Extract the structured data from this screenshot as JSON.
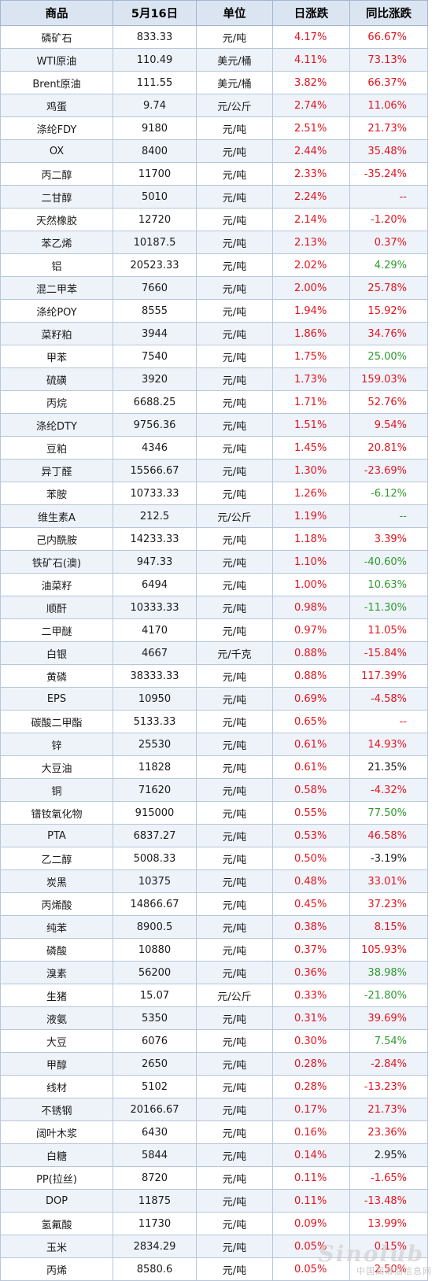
{
  "headers": [
    "商品",
    "5月16日",
    "单位",
    "日涨跌",
    "同比涨跌"
  ],
  "rows": [
    {
      "name": "磷矿石",
      "price": "833.33",
      "unit": "元/吨",
      "daily": "4.17%",
      "yoy": "66.67%",
      "yoy_color": "red"
    },
    {
      "name": "WTI原油",
      "price": "110.49",
      "unit": "美元/桶",
      "daily": "4.11%",
      "yoy": "73.13%",
      "yoy_color": "red"
    },
    {
      "name": "Brent原油",
      "price": "111.55",
      "unit": "美元/桶",
      "daily": "3.82%",
      "yoy": "66.37%",
      "yoy_color": "red"
    },
    {
      "name": "鸡蛋",
      "price": "9.74",
      "unit": "元/公斤",
      "daily": "2.74%",
      "yoy": "11.06%",
      "yoy_color": "red"
    },
    {
      "name": "涤纶FDY",
      "price": "9180",
      "unit": "元/吨",
      "daily": "2.51%",
      "yoy": "21.73%",
      "yoy_color": "red"
    },
    {
      "name": "OX",
      "price": "8400",
      "unit": "元/吨",
      "daily": "2.44%",
      "yoy": "35.48%",
      "yoy_color": "red"
    },
    {
      "name": "丙二醇",
      "price": "11700",
      "unit": "元/吨",
      "daily": "2.33%",
      "yoy": "-35.24%",
      "yoy_color": "red"
    },
    {
      "name": "二甘醇",
      "price": "5010",
      "unit": "元/吨",
      "daily": "2.24%",
      "yoy": "--",
      "yoy_color": "red"
    },
    {
      "name": "天然橡胶",
      "price": "12720",
      "unit": "元/吨",
      "daily": "2.14%",
      "yoy": "-1.20%",
      "yoy_color": "red"
    },
    {
      "name": "苯乙烯",
      "price": "10187.5",
      "unit": "元/吨",
      "daily": "2.13%",
      "yoy": "0.37%",
      "yoy_color": "red"
    },
    {
      "name": "铝",
      "price": "20523.33",
      "unit": "元/吨",
      "daily": "2.02%",
      "yoy": "4.29%",
      "yoy_color": "green"
    },
    {
      "name": "混二甲苯",
      "price": "7660",
      "unit": "元/吨",
      "daily": "2.00%",
      "yoy": "25.78%",
      "yoy_color": "red"
    },
    {
      "name": "涤纶POY",
      "price": "8555",
      "unit": "元/吨",
      "daily": "1.94%",
      "yoy": "15.92%",
      "yoy_color": "red"
    },
    {
      "name": "菜籽粕",
      "price": "3944",
      "unit": "元/吨",
      "daily": "1.86%",
      "yoy": "34.76%",
      "yoy_color": "red"
    },
    {
      "name": "甲苯",
      "price": "7540",
      "unit": "元/吨",
      "daily": "1.75%",
      "yoy": "25.00%",
      "yoy_color": "green"
    },
    {
      "name": "硫磺",
      "price": "3920",
      "unit": "元/吨",
      "daily": "1.73%",
      "yoy": "159.03%",
      "yoy_color": "red"
    },
    {
      "name": "丙烷",
      "price": "6688.25",
      "unit": "元/吨",
      "daily": "1.71%",
      "yoy": "52.76%",
      "yoy_color": "red"
    },
    {
      "name": "涤纶DTY",
      "price": "9756.36",
      "unit": "元/吨",
      "daily": "1.51%",
      "yoy": "9.54%",
      "yoy_color": "red"
    },
    {
      "name": "豆粕",
      "price": "4346",
      "unit": "元/吨",
      "daily": "1.45%",
      "yoy": "20.81%",
      "yoy_color": "red"
    },
    {
      "name": "异丁醛",
      "price": "15566.67",
      "unit": "元/吨",
      "daily": "1.30%",
      "yoy": "-23.69%",
      "yoy_color": "red"
    },
    {
      "name": "苯胺",
      "price": "10733.33",
      "unit": "元/吨",
      "daily": "1.26%",
      "yoy": "-6.12%",
      "yoy_color": "green"
    },
    {
      "name": "维生素A",
      "price": "212.5",
      "unit": "元/公斤",
      "daily": "1.19%",
      "yoy": "--",
      "yoy_color": "green"
    },
    {
      "name": "己内酰胺",
      "price": "14233.33",
      "unit": "元/吨",
      "daily": "1.18%",
      "yoy": "3.39%",
      "yoy_color": "red"
    },
    {
      "name": "铁矿石(澳)",
      "price": "947.33",
      "unit": "元/吨",
      "daily": "1.10%",
      "yoy": "-40.60%",
      "yoy_color": "green"
    },
    {
      "name": "油菜籽",
      "price": "6494",
      "unit": "元/吨",
      "daily": "1.00%",
      "yoy": "10.63%",
      "yoy_color": "green"
    },
    {
      "name": "顺酐",
      "price": "10333.33",
      "unit": "元/吨",
      "daily": "0.98%",
      "yoy": "-11.30%",
      "yoy_color": "green"
    },
    {
      "name": "二甲醚",
      "price": "4170",
      "unit": "元/吨",
      "daily": "0.97%",
      "yoy": "11.05%",
      "yoy_color": "red"
    },
    {
      "name": "白银",
      "price": "4667",
      "unit": "元/千克",
      "daily": "0.88%",
      "yoy": "-15.84%",
      "yoy_color": "red"
    },
    {
      "name": "黄磷",
      "price": "38333.33",
      "unit": "元/吨",
      "daily": "0.88%",
      "yoy": "117.39%",
      "yoy_color": "red"
    },
    {
      "name": "EPS",
      "price": "10950",
      "unit": "元/吨",
      "daily": "0.69%",
      "yoy": "-4.58%",
      "yoy_color": "red"
    },
    {
      "name": "碳酸二甲酯",
      "price": "5133.33",
      "unit": "元/吨",
      "daily": "0.65%",
      "yoy": "--",
      "yoy_color": "red"
    },
    {
      "name": "锌",
      "price": "25530",
      "unit": "元/吨",
      "daily": "0.61%",
      "yoy": "14.93%",
      "yoy_color": "red"
    },
    {
      "name": "大豆油",
      "price": "11828",
      "unit": "元/吨",
      "daily": "0.61%",
      "yoy": "21.35%",
      "yoy_color": "black"
    },
    {
      "name": "铜",
      "price": "71620",
      "unit": "元/吨",
      "daily": "0.58%",
      "yoy": "-4.32%",
      "yoy_color": "red"
    },
    {
      "name": "镨钕氧化物",
      "price": "915000",
      "unit": "元/吨",
      "daily": "0.55%",
      "yoy": "77.50%",
      "yoy_color": "green"
    },
    {
      "name": "PTA",
      "price": "6837.27",
      "unit": "元/吨",
      "daily": "0.53%",
      "yoy": "46.58%",
      "yoy_color": "red"
    },
    {
      "name": "乙二醇",
      "price": "5008.33",
      "unit": "元/吨",
      "daily": "0.50%",
      "yoy": "-3.19%",
      "yoy_color": "black"
    },
    {
      "name": "炭黑",
      "price": "10375",
      "unit": "元/吨",
      "daily": "0.48%",
      "yoy": "33.01%",
      "yoy_color": "red"
    },
    {
      "name": "丙烯酸",
      "price": "14866.67",
      "unit": "元/吨",
      "daily": "0.45%",
      "yoy": "37.23%",
      "yoy_color": "red"
    },
    {
      "name": "纯苯",
      "price": "8900.5",
      "unit": "元/吨",
      "daily": "0.38%",
      "yoy": "8.15%",
      "yoy_color": "red"
    },
    {
      "name": "磷酸",
      "price": "10880",
      "unit": "元/吨",
      "daily": "0.37%",
      "yoy": "105.93%",
      "yoy_color": "red"
    },
    {
      "name": "溴素",
      "price": "56200",
      "unit": "元/吨",
      "daily": "0.36%",
      "yoy": "38.98%",
      "yoy_color": "green"
    },
    {
      "name": "生猪",
      "price": "15.07",
      "unit": "元/公斤",
      "daily": "0.33%",
      "yoy": "-21.80%",
      "yoy_color": "green"
    },
    {
      "name": "液氨",
      "price": "5350",
      "unit": "元/吨",
      "daily": "0.31%",
      "yoy": "39.69%",
      "yoy_color": "red"
    },
    {
      "name": "大豆",
      "price": "6076",
      "unit": "元/吨",
      "daily": "0.30%",
      "yoy": "7.54%",
      "yoy_color": "green"
    },
    {
      "name": "甲醇",
      "price": "2650",
      "unit": "元/吨",
      "daily": "0.28%",
      "yoy": "-2.84%",
      "yoy_color": "red"
    },
    {
      "name": "线材",
      "price": "5102",
      "unit": "元/吨",
      "daily": "0.28%",
      "yoy": "-13.23%",
      "yoy_color": "red"
    },
    {
      "name": "不锈钢",
      "price": "20166.67",
      "unit": "元/吨",
      "daily": "0.17%",
      "yoy": "21.73%",
      "yoy_color": "red"
    },
    {
      "name": "阔叶木浆",
      "price": "6430",
      "unit": "元/吨",
      "daily": "0.16%",
      "yoy": "23.36%",
      "yoy_color": "red"
    },
    {
      "name": "白糖",
      "price": "5844",
      "unit": "元/吨",
      "daily": "0.14%",
      "yoy": "2.95%",
      "yoy_color": "black"
    },
    {
      "name": "PP(拉丝)",
      "price": "8720",
      "unit": "元/吨",
      "daily": "0.11%",
      "yoy": "-1.65%",
      "yoy_color": "red"
    },
    {
      "name": "DOP",
      "price": "11875",
      "unit": "元/吨",
      "daily": "0.11%",
      "yoy": "-13.48%",
      "yoy_color": "red"
    },
    {
      "name": "氢氟酸",
      "price": "11730",
      "unit": "元/吨",
      "daily": "0.09%",
      "yoy": "13.99%",
      "yoy_color": "red"
    },
    {
      "name": "玉米",
      "price": "2834.29",
      "unit": "元/吨",
      "daily": "0.05%",
      "yoy": "0.15%",
      "yoy_color": "red"
    },
    {
      "name": "丙烯",
      "price": "8580.6",
      "unit": "元/吨",
      "daily": "0.05%",
      "yoy": "2.50%",
      "yoy_color": "red"
    }
  ],
  "colors": {
    "up": "#e3141f",
    "green": "#2e9a2e",
    "black": "#1a1a1a",
    "header_bg": "#dbe5f1",
    "stripe_bg": "#eef3fa"
  },
  "watermark": {
    "logo": "Sinolub",
    "text": "中国润滑油信息网"
  }
}
